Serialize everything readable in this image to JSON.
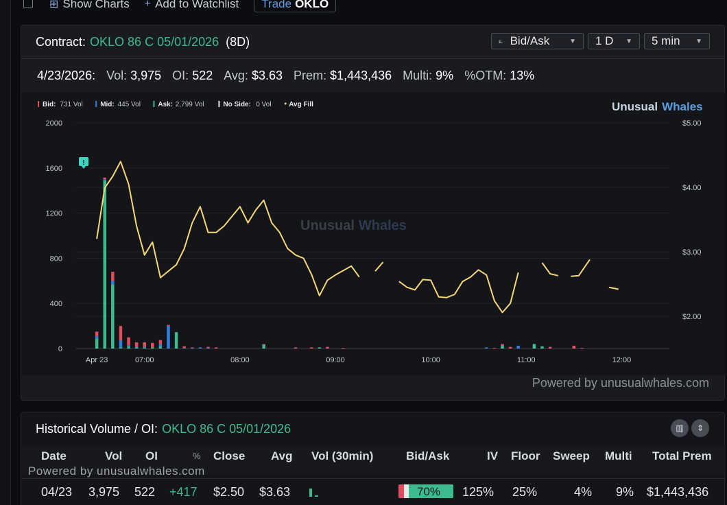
{
  "toolbar": {
    "show_charts": "Show Charts",
    "add_watchlist": "Add to Watchlist",
    "trade_prefix": "Trade",
    "trade_ticker": "OKLO"
  },
  "contract": {
    "label": "Contract:",
    "symbol": "OKLO 86 C 05/01/2026",
    "dte": "(8D)"
  },
  "dropdowns": {
    "type": "Bid/Ask",
    "range": "1 D",
    "interval": "5 min"
  },
  "stats": {
    "date": "4/23/2026:",
    "vol_label": "Vol:",
    "vol": "3,975",
    "oi_label": "OI:",
    "oi": "522",
    "avg_label": "Avg:",
    "avg": "$3.63",
    "prem_label": "Prem:",
    "prem": "$1,443,436",
    "multi_label": "Multi:",
    "multi": "9%",
    "otm_label": "%OTM:",
    "otm": "13%"
  },
  "chart_brand": {
    "word1": "Unusual",
    "word2": "Whales"
  },
  "powered_by": "Powered by unusualwhales.com",
  "colors": {
    "bid": "#e34b5e",
    "mid": "#2f7fe0",
    "ask": "#3dbb8f",
    "noside": "#e8e8ea",
    "avgfill": "#f5d679"
  },
  "chart_data": {
    "type": "bar",
    "legend": [
      {
        "name": "Bid:",
        "value": "731 Vol",
        "color": "#e34b5e"
      },
      {
        "name": "Mid:",
        "value": "445 Vol",
        "color": "#2f7fe0"
      },
      {
        "name": "Ask:",
        "value": "2,799 Vol",
        "color": "#3dbb8f"
      },
      {
        "name": "No Side:",
        "value": "0 Vol",
        "color": "#e8e8ea"
      },
      {
        "name": "Avg Fill",
        "value": "",
        "color": "#f5d679"
      }
    ],
    "y_ticks": [
      "2000",
      "1600",
      "1200",
      "800",
      "400",
      "0"
    ],
    "y2_ticks": [
      "$5.00",
      "$4.00",
      "$3.00",
      "$2.00"
    ],
    "ylim": [
      0,
      2000
    ],
    "y2lim": [
      1.5,
      5.0
    ],
    "x_ticks": [
      {
        "label": "Apr 23",
        "t": 0
      },
      {
        "label": "07:00",
        "t": 30
      },
      {
        "label": "08:00",
        "t": 90
      },
      {
        "label": "09:00",
        "t": 150
      },
      {
        "label": "10:00",
        "t": 210
      },
      {
        "label": "11:00",
        "t": 270
      },
      {
        "label": "12:00",
        "t": 330
      }
    ],
    "bars": [
      {
        "t": 0,
        "bid": 40,
        "mid": 20,
        "ask": 90
      },
      {
        "t": 5,
        "bid": 15,
        "mid": 10,
        "ask": 1490
      },
      {
        "t": 10,
        "bid": 80,
        "mid": 30,
        "ask": 570
      },
      {
        "t": 15,
        "bid": 130,
        "mid": 60,
        "ask": 10
      },
      {
        "t": 20,
        "bid": 70,
        "mid": 10,
        "ask": 20
      },
      {
        "t": 25,
        "bid": 40,
        "mid": 5,
        "ask": 10
      },
      {
        "t": 30,
        "bid": 40,
        "mid": 5,
        "ask": 10
      },
      {
        "t": 35,
        "bid": 40,
        "mid": 0,
        "ask": 10
      },
      {
        "t": 40,
        "bid": 35,
        "mid": 20,
        "ask": 20
      },
      {
        "t": 45,
        "bid": 10,
        "mid": 200,
        "ask": 0
      },
      {
        "t": 50,
        "bid": 0,
        "mid": 0,
        "ask": 145
      },
      {
        "t": 55,
        "bid": 15,
        "mid": 5,
        "ask": 0
      },
      {
        "t": 60,
        "bid": 5,
        "mid": 5,
        "ask": 0
      },
      {
        "t": 65,
        "bid": 0,
        "mid": 10,
        "ask": 0
      },
      {
        "t": 70,
        "bid": 10,
        "mid": 5,
        "ask": 0
      },
      {
        "t": 75,
        "bid": 10,
        "mid": 0,
        "ask": 0
      },
      {
        "t": 105,
        "bid": 5,
        "mid": 0,
        "ask": 35
      },
      {
        "t": 125,
        "bid": 10,
        "mid": 0,
        "ask": 0
      },
      {
        "t": 135,
        "bid": 10,
        "mid": 0,
        "ask": 0
      },
      {
        "t": 140,
        "bid": 0,
        "mid": 0,
        "ask": 10
      },
      {
        "t": 145,
        "bid": 15,
        "mid": 0,
        "ask": 0
      },
      {
        "t": 155,
        "bid": 5,
        "mid": 0,
        "ask": 0
      },
      {
        "t": 245,
        "bid": 0,
        "mid": 10,
        "ask": 0
      },
      {
        "t": 250,
        "bid": 5,
        "mid": 0,
        "ask": 0
      },
      {
        "t": 255,
        "bid": 10,
        "mid": 0,
        "ask": 30
      },
      {
        "t": 260,
        "bid": 15,
        "mid": 0,
        "ask": 0
      },
      {
        "t": 265,
        "bid": 0,
        "mid": 25,
        "ask": 0
      },
      {
        "t": 275,
        "bid": 0,
        "mid": 0,
        "ask": 40
      },
      {
        "t": 280,
        "bid": 0,
        "mid": 0,
        "ask": 20
      },
      {
        "t": 285,
        "bid": 15,
        "mid": 0,
        "ask": 0
      },
      {
        "t": 300,
        "bid": 25,
        "mid": 0,
        "ask": 0
      },
      {
        "t": 305,
        "bid": 5,
        "mid": 0,
        "ask": 0
      }
    ],
    "avg_fill_segments": [
      [
        [
          0,
          3.2
        ],
        [
          5,
          3.99
        ],
        [
          10,
          4.17
        ],
        [
          15,
          4.4
        ],
        [
          20,
          4.05
        ],
        [
          25,
          3.4
        ],
        [
          30,
          2.95
        ],
        [
          35,
          3.15
        ],
        [
          40,
          2.6
        ],
        [
          45,
          2.7
        ],
        [
          50,
          2.8
        ],
        [
          55,
          3.05
        ],
        [
          60,
          3.45
        ],
        [
          65,
          3.7
        ],
        [
          70,
          3.3
        ],
        [
          75,
          3.3
        ],
        [
          80,
          3.4
        ],
        [
          85,
          3.55
        ],
        [
          90,
          3.7
        ],
        [
          95,
          3.45
        ],
        [
          100,
          3.65
        ],
        [
          105,
          3.8
        ],
        [
          110,
          3.45
        ],
        [
          115,
          3.3
        ],
        [
          120,
          3.05
        ],
        [
          125,
          2.95
        ],
        [
          130,
          2.9
        ],
        [
          135,
          2.65
        ],
        [
          140,
          2.32
        ],
        [
          145,
          2.56
        ],
        [
          150,
          2.64
        ],
        [
          155,
          2.71
        ],
        [
          160,
          2.78
        ],
        [
          165,
          2.61
        ]
      ],
      [
        [
          175,
          2.7
        ],
        [
          180,
          2.84
        ]
      ],
      [
        [
          190,
          2.54
        ],
        [
          195,
          2.45
        ],
        [
          200,
          2.41
        ],
        [
          205,
          2.57
        ],
        [
          210,
          2.56
        ],
        [
          215,
          2.3
        ],
        [
          220,
          2.29
        ],
        [
          225,
          2.34
        ],
        [
          230,
          2.54
        ],
        [
          235,
          2.61
        ],
        [
          240,
          2.72
        ],
        [
          245,
          2.64
        ],
        [
          250,
          2.24
        ],
        [
          255,
          2.06
        ],
        [
          260,
          2.2
        ],
        [
          265,
          2.68
        ]
      ],
      [
        [
          280,
          2.83
        ],
        [
          285,
          2.66
        ],
        [
          290,
          2.63
        ]
      ],
      [
        [
          298,
          2.62
        ],
        [
          303,
          2.63
        ],
        [
          310,
          2.88
        ]
      ],
      [
        [
          322,
          2.45
        ],
        [
          328,
          2.42
        ]
      ]
    ]
  },
  "historical": {
    "title": "Historical Volume / OI:",
    "symbol": "OKLO 86 C 05/01/2026",
    "headers": {
      "date": "Date",
      "vol": "Vol",
      "oi": "OI",
      "pct": "%",
      "close": "Close",
      "avg": "Avg",
      "vol30": "Vol (30min)",
      "bidask": "Bid/Ask",
      "iv": "IV",
      "floor": "Floor",
      "sweep": "Sweep",
      "multi": "Multi",
      "total_prem": "Total Prem"
    },
    "watermark": "Powered by unusualwhales.com",
    "row": {
      "date": "04/23",
      "vol": "3,975",
      "oi": "522",
      "change": "+417",
      "close": "$2.50",
      "avg": "$3.63",
      "bidask_pct": "70%",
      "iv": "125%",
      "floor": "25%",
      "sweep": "4%",
      "multi": "9%",
      "total_prem": "$1,443,436"
    }
  }
}
